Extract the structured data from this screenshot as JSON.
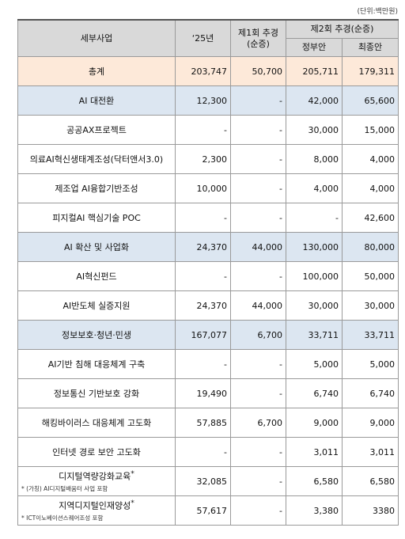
{
  "table": {
    "unit": "(단위:백만원)",
    "header": {
      "item": "세부사업",
      "year": "‘25년",
      "first": [
        "제1회 추경",
        "(순증)"
      ],
      "second": "제2회 추경(순증)",
      "second_sub": [
        "정부안",
        "최종안"
      ]
    },
    "rows": [
      {
        "label": "총계",
        "kind": "total",
        "cells": [
          "203,747",
          "50,700",
          "205,711",
          "179,311"
        ]
      },
      {
        "label": "AI 대전환",
        "kind": "group",
        "cells": [
          "12,300",
          "-",
          "42,000",
          "65,600"
        ]
      },
      {
        "label": "공공AX프로젝트",
        "kind": "item",
        "cells": [
          "-",
          "-",
          "30,000",
          "15,000"
        ]
      },
      {
        "label": "의료AI혁신생태계조성(닥터앤서3.0)",
        "kind": "item",
        "cells": [
          "2,300",
          "-",
          "8,000",
          "4,000"
        ]
      },
      {
        "label": "제조업 AI융합기반조성",
        "kind": "item",
        "cells": [
          "10,000",
          "-",
          "4,000",
          "4,000"
        ]
      },
      {
        "label": "피지컬AI 핵심기술 POC",
        "kind": "item",
        "cells": [
          "-",
          "-",
          "-",
          "42,600"
        ]
      },
      {
        "label": "AI 확산 및 사업화",
        "kind": "group",
        "cells": [
          "24,370",
          "44,000",
          "130,000",
          "80,000"
        ]
      },
      {
        "label": "AI혁신펀드",
        "kind": "item",
        "cells": [
          "-",
          "-",
          "100,000",
          "50,000"
        ]
      },
      {
        "label": "AI반도체 실증지원",
        "kind": "item",
        "cells": [
          "24,370",
          "44,000",
          "30,000",
          "30,000"
        ]
      },
      {
        "label": "정보보호·청년·민생",
        "kind": "group",
        "cells": [
          "167,077",
          "6,700",
          "33,711",
          "33,711"
        ]
      },
      {
        "label": "AI기반 침해 대응체계 구축",
        "kind": "item",
        "cells": [
          "-",
          "-",
          "5,000",
          "5,000"
        ]
      },
      {
        "label": "정보통신 기반보호 강화",
        "kind": "item",
        "cells": [
          "19,490",
          "-",
          "6,740",
          "6,740"
        ]
      },
      {
        "label": "해킹바이러스 대응체계 고도화",
        "kind": "item",
        "cells": [
          "57,885",
          "6,700",
          "9,000",
          "9,000"
        ]
      },
      {
        "label": "인터넷 경로 보안 고도화",
        "kind": "item",
        "cells": [
          "-",
          "-",
          "3,011",
          "3,011"
        ]
      },
      {
        "label": "디지털역량강화교육",
        "mark": "*",
        "note": "* (가칭) AI디지털배움터 사업 포함",
        "kind": "item",
        "cells": [
          "32,085",
          "-",
          "6,580",
          "6,580"
        ]
      },
      {
        "label": "지역디지털인재양성",
        "mark": "*",
        "note": "* ICT이노베이션스퀘어조성 포함",
        "kind": "item",
        "cells": [
          "57,617",
          "-",
          "3,380",
          "3380"
        ]
      }
    ],
    "fills": {
      "total": "#fde9d9",
      "group": "#dce6f1",
      "item": "#ffffff",
      "header": "#d9d9d9"
    }
  }
}
